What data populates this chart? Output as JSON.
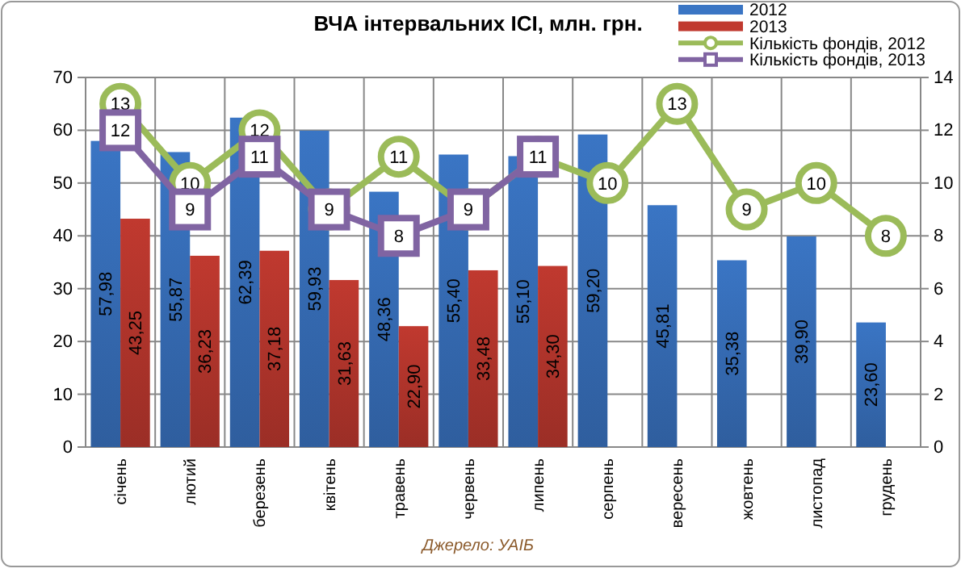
{
  "chart_data": {
    "type": "bar",
    "title": "ВЧА інтервальних ІСІ, млн. грн.",
    "categories": [
      "січень",
      "лютий",
      "березень",
      "квітень",
      "травень",
      "червень",
      "липень",
      "серпень",
      "вересень",
      "жовтень",
      "листопад",
      "грудень"
    ],
    "series": [
      {
        "name": "2012",
        "color": "#3a75c4",
        "values": [
          57.98,
          55.87,
          62.39,
          59.93,
          48.36,
          55.4,
          55.1,
          59.2,
          45.81,
          35.38,
          39.9,
          23.6
        ],
        "value_labels": [
          "57,98",
          "55,87",
          "62,39",
          "59,93",
          "48,36",
          "55,40",
          "55,10",
          "59,20",
          "45,81",
          "35,38",
          "39,90",
          "23,60"
        ]
      },
      {
        "name": "2013",
        "color": "#c0392f",
        "values": [
          43.25,
          36.23,
          37.18,
          31.63,
          22.9,
          33.48,
          34.3,
          null,
          null,
          null,
          null,
          null
        ],
        "value_labels": [
          "43,25",
          "36,23",
          "37,18",
          "31,63",
          "22,90",
          "33,48",
          "34,30",
          null,
          null,
          null,
          null,
          null
        ]
      },
      {
        "name": "Кількість фондів, 2012",
        "type": "line",
        "axis": "y2",
        "marker": "circle",
        "color": "#9bbb59",
        "values": [
          13,
          10,
          12,
          9,
          11,
          9,
          11,
          10,
          13,
          9,
          10,
          8
        ],
        "value_labels": [
          "13",
          "10",
          "12",
          null,
          "11",
          null,
          null,
          "10",
          "13",
          "9",
          "10",
          "8"
        ]
      },
      {
        "name": "Кількість фондів, 2013",
        "type": "line",
        "axis": "y2",
        "marker": "square",
        "color": "#8064a2",
        "values": [
          12,
          9,
          11,
          9,
          8,
          9,
          11,
          null,
          null,
          null,
          null,
          null
        ],
        "value_labels": [
          "12",
          "9",
          "11",
          "9",
          "8",
          "9",
          "11",
          null,
          null,
          null,
          null,
          null
        ]
      }
    ],
    "ylim": [
      0,
      70
    ],
    "yticks": [
      0,
      10,
      20,
      30,
      40,
      50,
      60,
      70
    ],
    "y2lim": [
      0,
      14
    ],
    "y2ticks": [
      0,
      2,
      4,
      6,
      8,
      10,
      12,
      14
    ],
    "grid": true,
    "legend": "top right",
    "annotations": [
      "Джерело: УАІБ"
    ]
  }
}
